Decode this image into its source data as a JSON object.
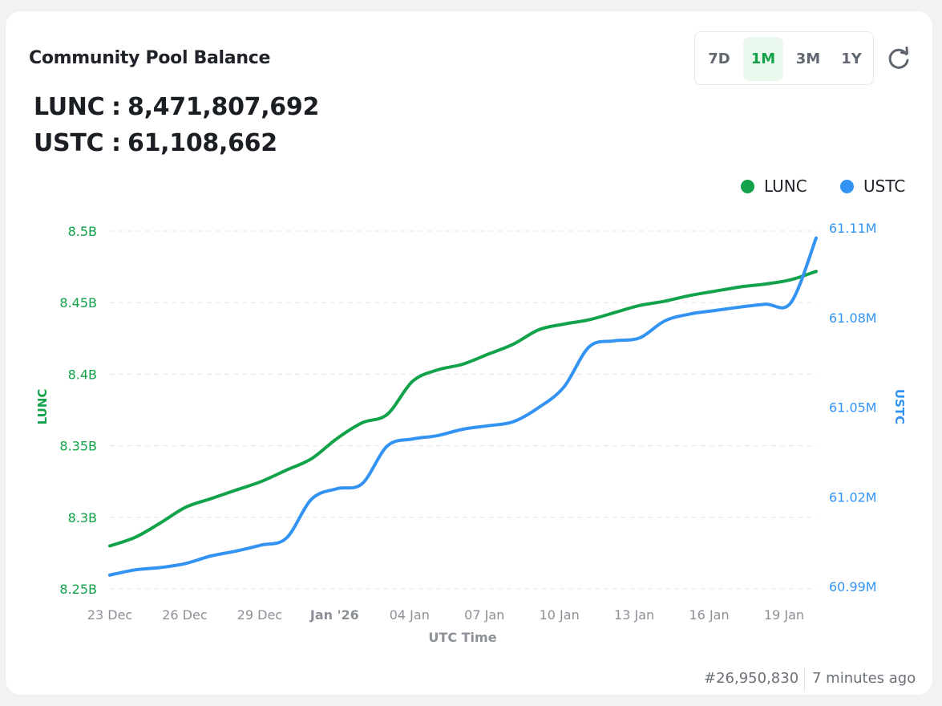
{
  "card": {
    "title": "Community Pool Balance",
    "ranges": [
      "7D",
      "1M",
      "3M",
      "1Y"
    ],
    "active_range": "1M",
    "refresh_icon": "refresh-icon"
  },
  "balances": [
    {
      "label": "LUNC",
      "colon": ":",
      "value": "8,471,807,692"
    },
    {
      "label": "USTC",
      "colon": ":",
      "value": "61,108,662"
    }
  ],
  "footer": {
    "block": "#26,950,830",
    "updated": "7 minutes ago"
  },
  "colors": {
    "lunc": "#11a24a",
    "ustc": "#3393f3",
    "grid": "#e3e5e8",
    "xtick": "#8b9097"
  },
  "chart_data": {
    "type": "line",
    "xlabel": "UTC Time",
    "x_ticks": [
      "23 Dec",
      "26 Dec",
      "29 Dec",
      "Jan '26",
      "04 Jan",
      "07 Jan",
      "10 Jan",
      "13 Jan",
      "16 Jan",
      "19 Jan"
    ],
    "x_tick_bold": "Jan '26",
    "x": [
      "2025-12-23",
      "2025-12-24",
      "2025-12-25",
      "2025-12-26",
      "2025-12-27",
      "2025-12-28",
      "2025-12-29",
      "2025-12-30",
      "2025-12-31",
      "2026-01-01",
      "2026-01-02",
      "2026-01-03",
      "2026-01-04",
      "2026-01-05",
      "2026-01-06",
      "2026-01-07",
      "2026-01-08",
      "2026-01-09",
      "2026-01-10",
      "2026-01-11",
      "2026-01-12",
      "2026-01-13",
      "2026-01-14",
      "2026-01-15",
      "2026-01-16",
      "2026-01-17",
      "2026-01-18",
      "2026-01-19",
      "2026-01-20"
    ],
    "legend_position": "top-right",
    "grid": true,
    "y_left": {
      "label": "LUNC",
      "ticks": [
        "8.5B",
        "8.45B",
        "8.4B",
        "8.35B",
        "8.3B",
        "8.25B"
      ],
      "range": [
        8250000000,
        8500000000
      ]
    },
    "y_right": {
      "label": "USTC",
      "ticks": [
        "61.11M",
        "61.08M",
        "61.05M",
        "61.02M",
        "60.99M"
      ],
      "range": [
        60990000,
        61110000
      ]
    },
    "series": [
      {
        "name": "LUNC",
        "axis": "left",
        "values": [
          8280000000,
          8286000000,
          8296000000,
          8307000000,
          8313000000,
          8319000000,
          8325000000,
          8333000000,
          8341000000,
          8355000000,
          8366000000,
          8372000000,
          8395000000,
          8403000000,
          8407000000,
          8414000000,
          8421000000,
          8431000000,
          8435000000,
          8438000000,
          8443000000,
          8448000000,
          8451000000,
          8455000000,
          8458000000,
          8461000000,
          8463000000,
          8466000000,
          8471800000
        ]
      },
      {
        "name": "USTC",
        "axis": "right",
        "values": [
          60992000,
          60993800,
          60994600,
          60996000,
          60998600,
          61000300,
          61002400,
          61004800,
          61018300,
          61021900,
          61023600,
          61036700,
          61039100,
          61040300,
          61042500,
          61043700,
          61045100,
          61050000,
          61057100,
          61071000,
          61073100,
          61074100,
          61080000,
          61082400,
          61083600,
          61084800,
          61085800,
          61086300,
          61108700
        ]
      }
    ]
  }
}
